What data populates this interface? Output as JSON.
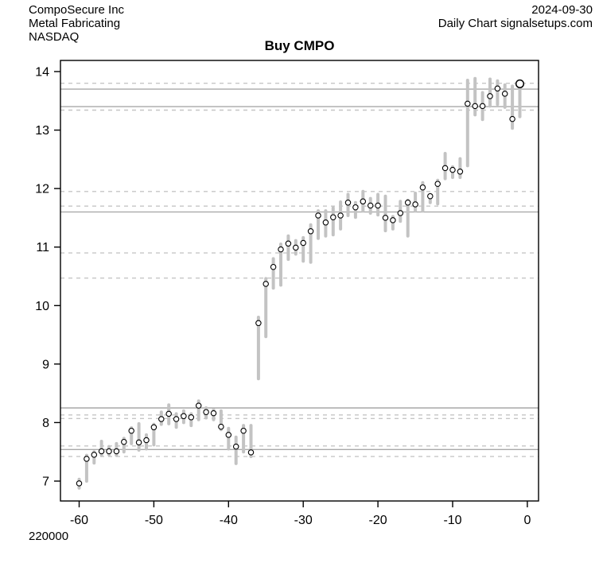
{
  "header": {
    "company": "CompoSecure Inc",
    "industry": "Metal Fabricating",
    "exchange": "NASDAQ",
    "date": "2024-09-30",
    "chart_type_line": "Daily Chart signalsetups.com"
  },
  "title": "Buy CMPO",
  "volume_label": "220000",
  "chart_data": {
    "type": "ohlc-range",
    "title": "Buy CMPO",
    "xlabel": "",
    "ylabel": "",
    "xlim": [
      -62.5,
      1.5
    ],
    "ylim": [
      6.66,
      14.19
    ],
    "xticks": [
      -60,
      -50,
      -40,
      -30,
      -20,
      -10,
      0
    ],
    "yticks": [
      7,
      8,
      9,
      10,
      11,
      12,
      13,
      14
    ],
    "grid": "off",
    "legend": "none",
    "x": [
      -60,
      -59,
      -58,
      -57,
      -56,
      -55,
      -54,
      -53,
      -52,
      -51,
      -50,
      -49,
      -48,
      -47,
      -46,
      -45,
      -44,
      -43,
      -42,
      -41,
      -40,
      -39,
      -38,
      -37,
      -36,
      -35,
      -34,
      -33,
      -32,
      -31,
      -30,
      -29,
      -28,
      -27,
      -26,
      -25,
      -24,
      -23,
      -22,
      -21,
      -20,
      -19,
      -18,
      -17,
      -16,
      -15,
      -14,
      -13,
      -12,
      -11,
      -10,
      -9,
      -8,
      -7,
      -6,
      -5,
      -4,
      -3,
      -2,
      -1
    ],
    "bars_low_high_close": [
      [
        6.88,
        7.03,
        6.96
      ],
      [
        7.0,
        7.44,
        7.38
      ],
      [
        7.31,
        7.5,
        7.45
      ],
      [
        7.44,
        7.68,
        7.51
      ],
      [
        7.45,
        7.59,
        7.51
      ],
      [
        7.44,
        7.64,
        7.51
      ],
      [
        7.5,
        7.73,
        7.67
      ],
      [
        7.64,
        7.91,
        7.86
      ],
      [
        7.53,
        7.98,
        7.66
      ],
      [
        7.55,
        7.79,
        7.7
      ],
      [
        7.62,
        7.97,
        7.92
      ],
      [
        7.97,
        8.18,
        8.06
      ],
      [
        7.98,
        8.3,
        8.15
      ],
      [
        7.92,
        8.15,
        8.06
      ],
      [
        8.0,
        8.2,
        8.11
      ],
      [
        7.95,
        8.15,
        8.09
      ],
      [
        8.05,
        8.37,
        8.29
      ],
      [
        8.08,
        8.25,
        8.18
      ],
      [
        8.05,
        8.22,
        8.16
      ],
      [
        7.88,
        8.2,
        7.93
      ],
      [
        7.55,
        7.9,
        7.79
      ],
      [
        7.3,
        7.75,
        7.59
      ],
      [
        7.5,
        7.95,
        7.86
      ],
      [
        7.42,
        7.95,
        7.49
      ],
      [
        8.75,
        9.8,
        9.7
      ],
      [
        9.47,
        10.46,
        10.37
      ],
      [
        10.3,
        10.8,
        10.66
      ],
      [
        10.35,
        11.05,
        10.96
      ],
      [
        10.79,
        11.19,
        11.06
      ],
      [
        10.88,
        11.11,
        10.99
      ],
      [
        10.76,
        11.16,
        11.07
      ],
      [
        10.74,
        11.38,
        11.27
      ],
      [
        11.15,
        11.62,
        11.54
      ],
      [
        11.19,
        11.62,
        11.42
      ],
      [
        11.21,
        11.67,
        11.51
      ],
      [
        11.31,
        11.77,
        11.54
      ],
      [
        11.54,
        11.9,
        11.76
      ],
      [
        11.51,
        11.76,
        11.68
      ],
      [
        11.62,
        11.95,
        11.78
      ],
      [
        11.58,
        11.83,
        11.71
      ],
      [
        11.55,
        11.9,
        11.71
      ],
      [
        11.28,
        11.87,
        11.5
      ],
      [
        11.31,
        11.52,
        11.46
      ],
      [
        11.44,
        11.78,
        11.58
      ],
      [
        11.19,
        11.8,
        11.76
      ],
      [
        11.62,
        11.92,
        11.73
      ],
      [
        11.62,
        12.1,
        12.02
      ],
      [
        11.76,
        11.9,
        11.87
      ],
      [
        11.74,
        12.14,
        12.08
      ],
      [
        12.17,
        12.6,
        12.35
      ],
      [
        12.19,
        12.37,
        12.32
      ],
      [
        12.19,
        12.51,
        12.29
      ],
      [
        12.39,
        13.85,
        13.45
      ],
      [
        13.26,
        13.88,
        13.41
      ],
      [
        13.18,
        13.64,
        13.41
      ],
      [
        13.41,
        13.87,
        13.58
      ],
      [
        13.44,
        13.84,
        13.71
      ],
      [
        13.39,
        13.77,
        13.62
      ],
      [
        13.03,
        13.75,
        13.19
      ],
      [
        13.23,
        13.8,
        13.79
      ]
    ],
    "levels_solid": [
      13.7,
      13.4,
      11.6,
      8.25,
      7.54
    ],
    "levels_dashed": [
      13.8,
      13.34,
      11.95,
      11.7,
      10.9,
      10.47,
      8.13,
      8.07,
      7.6,
      7.42
    ],
    "highlight_last_close": true,
    "colors": {
      "bar": "#c3c3c3",
      "close_marker_stroke": "#000000",
      "close_marker_fill": "#ffffff",
      "level_solid": "#a9a9a9",
      "level_dashed": "#c6c6c6",
      "axis": "#000000"
    }
  }
}
